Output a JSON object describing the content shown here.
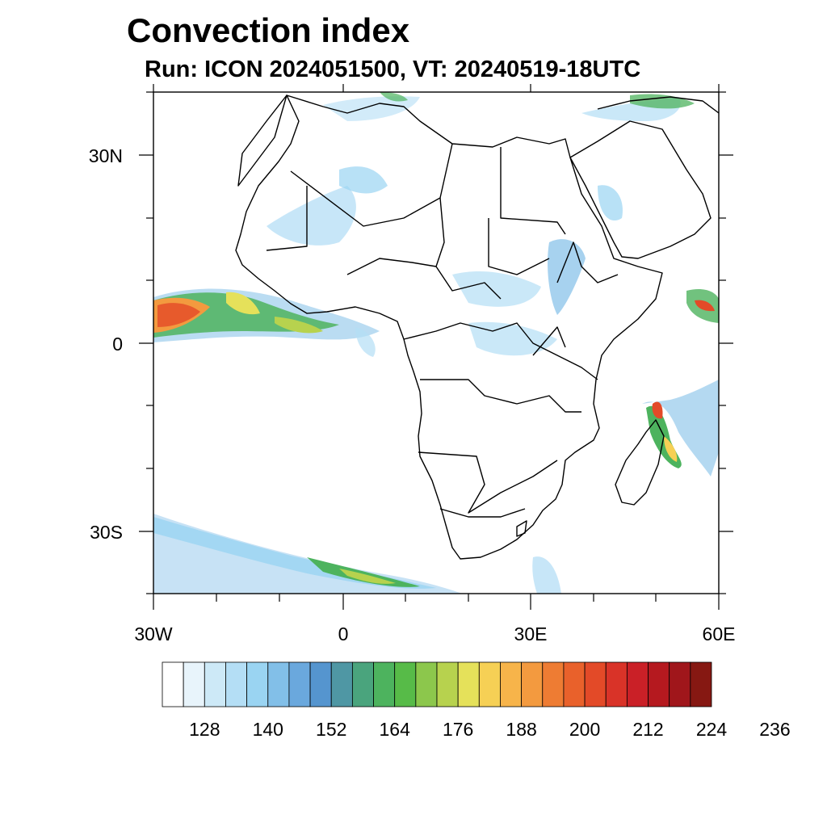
{
  "title": "Convection index",
  "subtitle": "Run: ICON 2024051500,  VT: 20240519-18UTC",
  "map": {
    "lat_labels": [
      {
        "value": 30,
        "label": "30N"
      },
      {
        "value": 0,
        "label": "0"
      },
      {
        "value": -30,
        "label": "30S"
      }
    ],
    "lon_labels": [
      {
        "value": -30,
        "label": "30W"
      },
      {
        "value": 0,
        "label": "0"
      },
      {
        "value": 30,
        "label": "30E"
      },
      {
        "value": 60,
        "label": "60E"
      }
    ]
  },
  "colorbar": {
    "colors": [
      "#ffffff",
      "#e8f4fb",
      "#cde9f7",
      "#b4def5",
      "#9ad4f2",
      "#82bfe8",
      "#6aa8dd",
      "#5595cf",
      "#4f97a4",
      "#4aa47d",
      "#4db35e",
      "#57bb48",
      "#8cc74c",
      "#b7d24e",
      "#e5e15a",
      "#f6d055",
      "#f7b44a",
      "#f39a3f",
      "#ee7c33",
      "#e9612b",
      "#e34a28",
      "#d93328",
      "#ca2027",
      "#b5191f",
      "#a0161b",
      "#861812"
    ],
    "labels": [
      "128",
      "140",
      "152",
      "164",
      "176",
      "188",
      "200",
      "212",
      "224",
      "236"
    ]
  }
}
